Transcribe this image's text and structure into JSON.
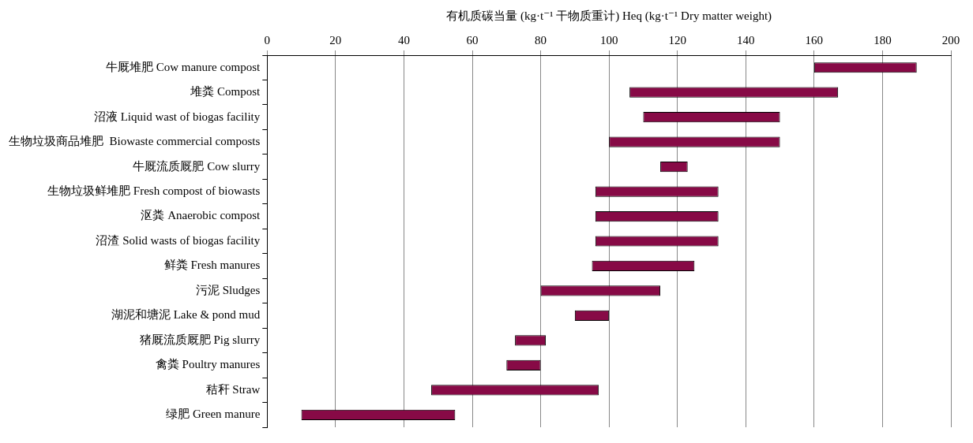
{
  "chart_data": {
    "type": "bar",
    "orientation": "horizontal",
    "xlabel": "有机质碳当量 (kg·t⁻¹ 干物质重计) Heq (kg·t⁻¹ Dry matter weight)",
    "categories": [
      "牛厩堆肥 Cow manure compost",
      "堆粪 Compost",
      "沼液 Liquid wast of biogas facility",
      "生物垃圾商品堆肥  Biowaste commercial composts",
      "牛厩流质厩肥 Cow slurry",
      "生物垃圾鲜堆肥 Fresh compost of biowasts",
      "沤粪 Anaerobic compost",
      "沼渣 Solid wasts of biogas facility",
      "鲜粪 Fresh manures",
      "污泥 Sludges",
      "湖泥和塘泥 Lake & pond mud",
      "猪厩流质厩肥 Pig slurry",
      "禽粪 Poultry manures",
      "秸秆 Straw",
      "绿肥 Green manure"
    ],
    "base": [
      160,
      106,
      110,
      100,
      115,
      96,
      96,
      96,
      95,
      80,
      90,
      72.5,
      70,
      48,
      10
    ],
    "values": [
      30,
      61,
      40,
      50,
      8,
      36,
      36,
      36,
      30,
      35,
      10,
      9,
      10,
      49,
      45
    ],
    "color": "#870a46",
    "xlim": [
      0,
      200
    ],
    "xticks": [
      0,
      20,
      40,
      60,
      80,
      100,
      120,
      140,
      160,
      180,
      200
    ],
    "grid": "x",
    "legend": false
  }
}
